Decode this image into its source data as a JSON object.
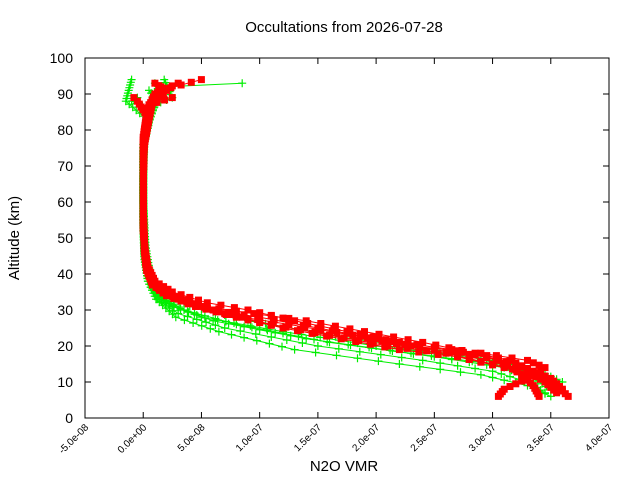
{
  "chart_data": {
    "type": "scatter",
    "title": "Occultations from 2026-07-28",
    "xlabel": "N2O VMR",
    "ylabel": "Altitude (km)",
    "xlim": [
      -5e-08,
      4e-07
    ],
    "ylim": [
      0,
      100
    ],
    "xticks": [
      "-5.0e-08",
      "0.0e+00",
      "5.0e-08",
      "1.0e-07",
      "1.5e-07",
      "2.0e-07",
      "2.5e-07",
      "3.0e-07",
      "3.5e-07",
      "4.0e-07"
    ],
    "xtick_values": [
      -5e-08,
      0,
      5e-08,
      1e-07,
      1.5e-07,
      2e-07,
      2.5e-07,
      3e-07,
      3.5e-07,
      4e-07
    ],
    "yticks": [
      "0",
      "10",
      "20",
      "30",
      "40",
      "50",
      "60",
      "70",
      "80",
      "90",
      "100"
    ],
    "ytick_values": [
      0,
      10,
      20,
      30,
      40,
      50,
      60,
      70,
      80,
      90,
      100
    ],
    "grid": false,
    "series": [
      {
        "color": "#00ee00",
        "marker": "plus",
        "profiles": [
          [
            [
              3.45e-07,
              7
            ],
            [
              3.3e-07,
              10
            ],
            [
              3e-07,
              13
            ],
            [
              2.4e-07,
              16
            ],
            [
              1.5e-07,
              20
            ],
            [
              7e-08,
              25
            ],
            [
              3e-08,
              29
            ],
            [
              1.2e-08,
              33
            ],
            [
              4e-09,
              38
            ],
            [
              1e-09,
              45
            ],
            [
              0,
              55
            ],
            [
              0,
              65
            ],
            [
              0,
              75
            ],
            [
              5e-09,
              82
            ],
            [
              1e-08,
              87
            ],
            [
              1.5e-08,
              90
            ],
            [
              1e-08,
              93
            ]
          ],
          [
            [
              3.5e-07,
              8
            ],
            [
              3.35e-07,
              11
            ],
            [
              3.1e-07,
              14
            ],
            [
              2.5e-07,
              17
            ],
            [
              1.6e-07,
              21
            ],
            [
              8e-08,
              26
            ],
            [
              3.5e-08,
              30
            ],
            [
              1.4e-08,
              34
            ],
            [
              5e-09,
              39
            ],
            [
              1e-09,
              46
            ],
            [
              0,
              56
            ],
            [
              0,
              68
            ],
            [
              1e-09,
              78
            ],
            [
              3e-09,
              85
            ],
            [
              8e-09,
              89
            ],
            [
              2e-08,
              92
            ],
            [
              8.5e-08,
              93
            ]
          ],
          [
            [
              3.55e-07,
              9
            ],
            [
              3.4e-07,
              12
            ],
            [
              3.15e-07,
              15
            ],
            [
              2.7e-07,
              18
            ],
            [
              1.8e-07,
              22
            ],
            [
              9e-08,
              27
            ],
            [
              4e-08,
              31
            ],
            [
              1.5e-08,
              35
            ],
            [
              6e-09,
              40
            ],
            [
              2e-09,
              48
            ],
            [
              0,
              60
            ],
            [
              0,
              72
            ],
            [
              2e-09,
              80
            ],
            [
              4e-09,
              86
            ],
            [
              -1e-08,
              88
            ],
            [
              -5e-09,
              89
            ]
          ],
          [
            [
              3.6e-07,
              10
            ],
            [
              3.4e-07,
              13
            ],
            [
              3e-07,
              15
            ],
            [
              2.3e-07,
              18
            ],
            [
              1.4e-07,
              22
            ],
            [
              6e-08,
              27
            ],
            [
              2.5e-08,
              31
            ],
            [
              1e-08,
              35
            ],
            [
              3e-09,
              41
            ],
            [
              1e-09,
              50
            ],
            [
              0,
              62
            ],
            [
              0,
              74
            ],
            [
              2e-09,
              82
            ],
            [
              1e-08,
              87
            ],
            [
              2.5e-08,
              89
            ],
            [
              1.8e-08,
              94
            ]
          ],
          [
            [
              3.4e-07,
              11
            ],
            [
              3.2e-07,
              14
            ],
            [
              2.8e-07,
              17
            ],
            [
              2e-07,
              20
            ],
            [
              1.2e-07,
              24
            ],
            [
              5e-08,
              28
            ],
            [
              2e-08,
              32
            ],
            [
              8e-09,
              36
            ],
            [
              3e-09,
              42
            ],
            [
              0,
              52
            ],
            [
              0,
              64
            ],
            [
              0,
              76
            ],
            [
              3e-09,
              83
            ],
            [
              -1.5e-08,
              88
            ],
            [
              -1e-08,
              94
            ]
          ],
          [
            [
              3.5e-07,
              6
            ],
            [
              3.3e-07,
              9
            ],
            [
              2.9e-07,
              12
            ],
            [
              2.2e-07,
              15
            ],
            [
              1.3e-07,
              19
            ],
            [
              6.5e-08,
              24
            ],
            [
              2.8e-08,
              28
            ],
            [
              1.1e-08,
              33
            ],
            [
              4e-09,
              38
            ],
            [
              1e-09,
              44
            ],
            [
              0,
              54
            ],
            [
              0,
              66
            ],
            [
              1e-09,
              77
            ],
            [
              6e-09,
              84
            ],
            [
              1.2e-08,
              88
            ],
            [
              5e-09,
              91
            ]
          ]
        ]
      },
      {
        "color": "#ff0000",
        "marker": "square",
        "profiles": [
          [
            [
              3.65e-07,
              6
            ],
            [
              3.55e-07,
              9
            ],
            [
              3.4e-07,
              12
            ],
            [
              3.1e-07,
              14
            ],
            [
              2.7e-07,
              17
            ],
            [
              2.2e-07,
              19
            ],
            [
              1.7e-07,
              22
            ],
            [
              1.2e-07,
              25
            ],
            [
              8e-08,
              28
            ],
            [
              4.5e-08,
              31
            ],
            [
              2e-08,
              34
            ],
            [
              8e-09,
              37
            ],
            [
              3e-09,
              42
            ],
            [
              1e-09,
              48
            ],
            [
              0,
              55
            ],
            [
              0,
              65
            ],
            [
              0,
              75
            ],
            [
              2e-09,
              82
            ],
            [
              6e-09,
              87
            ],
            [
              1.5e-08,
              91
            ],
            [
              5e-08,
              94
            ]
          ],
          [
            [
              3.55e-07,
              7
            ],
            [
              3.45e-07,
              10
            ],
            [
              3.3e-07,
              13
            ],
            [
              3e-07,
              15
            ],
            [
              2.6e-07,
              18
            ],
            [
              2.1e-07,
              20
            ],
            [
              1.6e-07,
              23
            ],
            [
              1.1e-07,
              26
            ],
            [
              7e-08,
              29
            ],
            [
              4e-08,
              32
            ],
            [
              1.8e-08,
              35
            ],
            [
              7e-09,
              38
            ],
            [
              2e-09,
              43
            ],
            [
              1e-09,
              50
            ],
            [
              0,
              58
            ],
            [
              0,
              70
            ],
            [
              1e-09,
              80
            ],
            [
              4e-09,
              86
            ],
            [
              1e-08,
              90
            ],
            [
              3e-08,
              93
            ]
          ],
          [
            [
              3.4e-07,
              6
            ],
            [
              3.35e-07,
              9
            ],
            [
              3.25e-07,
              12
            ],
            [
              3.05e-07,
              16
            ],
            [
              2.65e-07,
              19
            ],
            [
              2.2e-07,
              21
            ],
            [
              1.75e-07,
              24
            ],
            [
              1.3e-07,
              27
            ],
            [
              9e-08,
              30
            ],
            [
              5.5e-08,
              32
            ],
            [
              2.5e-08,
              35
            ],
            [
              1e-08,
              38
            ],
            [
              4e-09,
              42
            ],
            [
              1e-09,
              48
            ],
            [
              0,
              57
            ],
            [
              0,
              68
            ],
            [
              0,
              78
            ],
            [
              3e-09,
              84
            ],
            [
              -5e-09,
              88
            ],
            [
              -8e-09,
              89
            ]
          ],
          [
            [
              3.6e-07,
              8
            ],
            [
              3.5e-07,
              11
            ],
            [
              3.35e-07,
              13
            ],
            [
              3.15e-07,
              16
            ],
            [
              2.85e-07,
              18
            ],
            [
              2.4e-07,
              21
            ],
            [
              1.9e-07,
              24
            ],
            [
              1.4e-07,
              27
            ],
            [
              9.5e-08,
              29
            ],
            [
              5e-08,
              31
            ],
            [
              2.2e-08,
              34
            ],
            [
              9e-09,
              37
            ],
            [
              3e-09,
              41
            ],
            [
              1e-09,
              47
            ],
            [
              0,
              56
            ],
            [
              0,
              66
            ],
            [
              1e-09,
              76
            ],
            [
              5e-09,
              83
            ],
            [
              8e-09,
              88
            ],
            [
              1.5e-08,
              92
            ]
          ],
          [
            [
              3.5e-07,
              10
            ],
            [
              3.4e-07,
              12
            ],
            [
              3.2e-07,
              15
            ],
            [
              2.95e-07,
              17
            ],
            [
              2.5e-07,
              19
            ],
            [
              2e-07,
              22
            ],
            [
              1.5e-07,
              25
            ],
            [
              1e-07,
              28
            ],
            [
              6e-08,
              30
            ],
            [
              3e-08,
              33
            ],
            [
              1.3e-08,
              36
            ],
            [
              5e-09,
              40
            ],
            [
              2e-09,
              45
            ],
            [
              0,
              52
            ],
            [
              0,
              62
            ],
            [
              0,
              72
            ],
            [
              2e-09,
              81
            ],
            [
              4e-09,
              86
            ],
            [
              2e-08,
              91
            ],
            [
              1e-08,
              93
            ]
          ],
          [
            [
              3.05e-07,
              6
            ],
            [
              3.1e-07,
              8
            ],
            [
              3.3e-07,
              11
            ],
            [
              3.45e-07,
              14
            ],
            [
              3.3e-07,
              16
            ],
            [
              2.9e-07,
              18
            ],
            [
              2.3e-07,
              20
            ],
            [
              1.8e-07,
              23
            ],
            [
              1.25e-07,
              26
            ],
            [
              8.5e-08,
              28
            ],
            [
              4.5e-08,
              31
            ],
            [
              2e-08,
              34
            ],
            [
              8e-09,
              37
            ],
            [
              3e-09,
              41
            ],
            [
              1e-09,
              46
            ],
            [
              0,
              54
            ],
            [
              0,
              64
            ],
            [
              0,
              74
            ],
            [
              2e-09,
              82
            ],
            [
              5e-09,
              87
            ],
            [
              2.5e-08,
              89
            ]
          ]
        ]
      }
    ]
  }
}
